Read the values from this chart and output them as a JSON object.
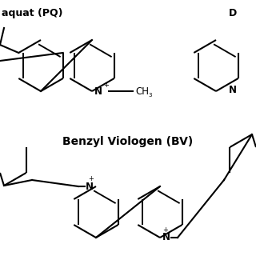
{
  "bg_color": "#ffffff",
  "line_color": "#000000",
  "line_width": 1.5,
  "font_size_title": 9,
  "font_size_atom": 8.5,
  "font_size_super": 6,
  "title_pq": "aquat (PQ)",
  "title_dq": "D",
  "title_bv": "Benzyl Viologen (BV)"
}
